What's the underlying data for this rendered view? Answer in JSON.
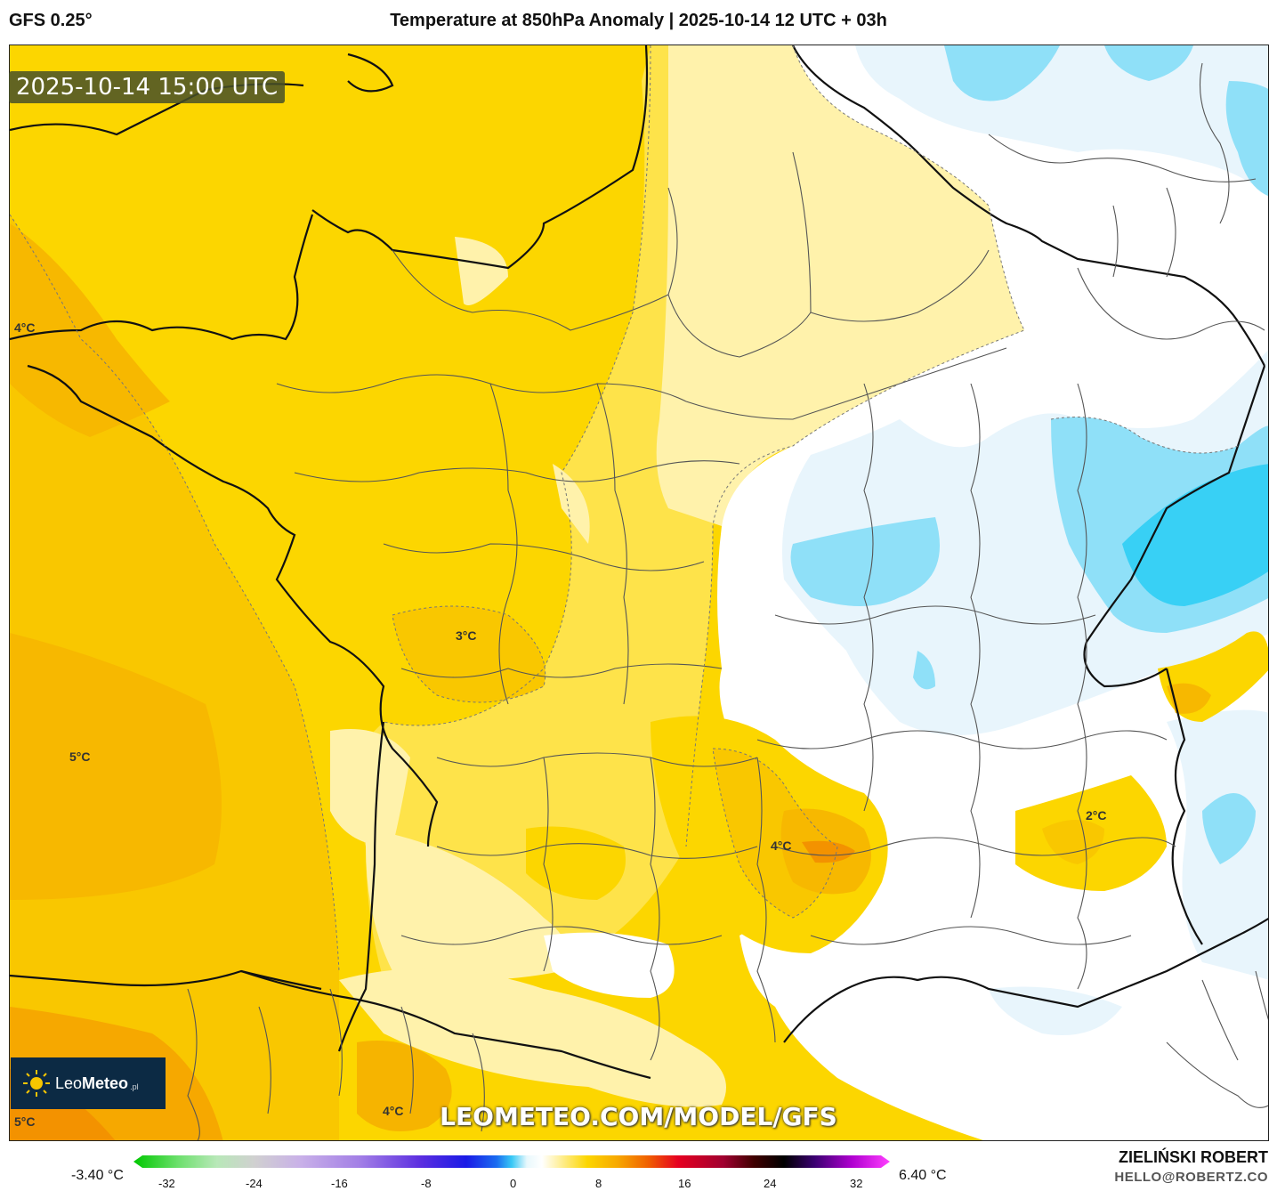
{
  "header": {
    "model": "GFS 0.25°",
    "title": "Temperature at 850hPa Anomaly | 2025-10-14 12 UTC + 03h"
  },
  "timestamp": "2025-10-14 15:00 UTC",
  "watermark": "LEOMETEO.COM/MODEL/GFS",
  "logo": {
    "name_light": "Leo",
    "name_bold": "Meteo",
    "suffix": ".pl"
  },
  "map_labels": [
    "4°C",
    "5°C",
    "3°C",
    "4°C",
    "2°C",
    "4°C",
    "5°C"
  ],
  "colorbar": {
    "min_label": "-3.40 °C",
    "max_label": "6.40 °C",
    "ticks": [
      "-32",
      "-24",
      "-16",
      "-8",
      "0",
      "8",
      "16",
      "24",
      "32"
    ]
  },
  "author": {
    "name": "ZIELIŃSKI ROBERT",
    "email": "HELLO@ROBERTZ.CO"
  },
  "colors": {
    "sea_warm": "#f9c700",
    "warm": "#fcd600",
    "mild": "#fee34a",
    "light": "#fff2ab",
    "neutral": "#ffffff",
    "cool": "#e8f5fc",
    "cold": "#8fe0f8",
    "coldest": "#38d0f5"
  }
}
